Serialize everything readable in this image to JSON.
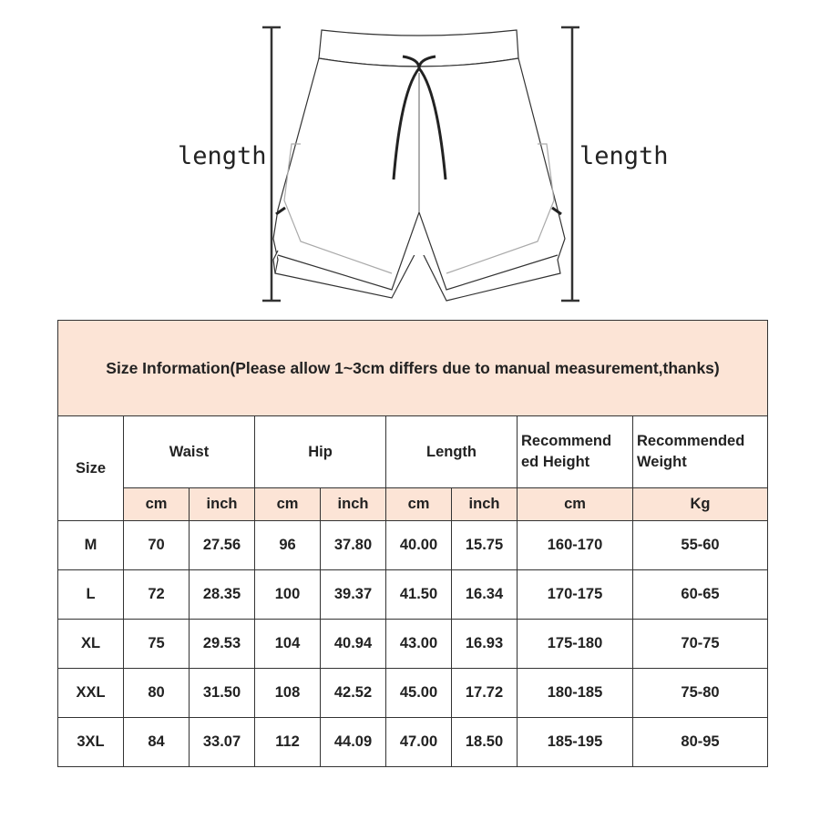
{
  "measure_labels": {
    "left": "length",
    "right": "length"
  },
  "table": {
    "title": "Size Information(Please allow 1~3cm differs due to manual measurement,thanks)",
    "headers": {
      "size": "Size",
      "waist": "Waist",
      "hip": "Hip",
      "length": "Length",
      "height": "Recommend ed Height",
      "weight": "Recommended Weight"
    },
    "units": [
      "cm",
      "inch",
      "cm",
      "inch",
      "cm",
      "inch",
      "cm",
      "Kg"
    ],
    "rows": [
      [
        "M",
        "70",
        "27.56",
        "96",
        "37.80",
        "40.00",
        "15.75",
        "160-170",
        "55-60"
      ],
      [
        "L",
        "72",
        "28.35",
        "100",
        "39.37",
        "41.50",
        "16.34",
        "170-175",
        "60-65"
      ],
      [
        "XL",
        "75",
        "29.53",
        "104",
        "40.94",
        "43.00",
        "16.93",
        "175-180",
        "70-75"
      ],
      [
        "XXL",
        "80",
        "31.50",
        "108",
        "42.52",
        "45.00",
        "17.72",
        "180-185",
        "75-80"
      ],
      [
        "3XL",
        "84",
        "33.07",
        "112",
        "44.09",
        "47.00",
        "18.50",
        "185-195",
        "80-95"
      ]
    ]
  },
  "colors": {
    "header_fill": "#fce4d6",
    "border": "#333333"
  }
}
